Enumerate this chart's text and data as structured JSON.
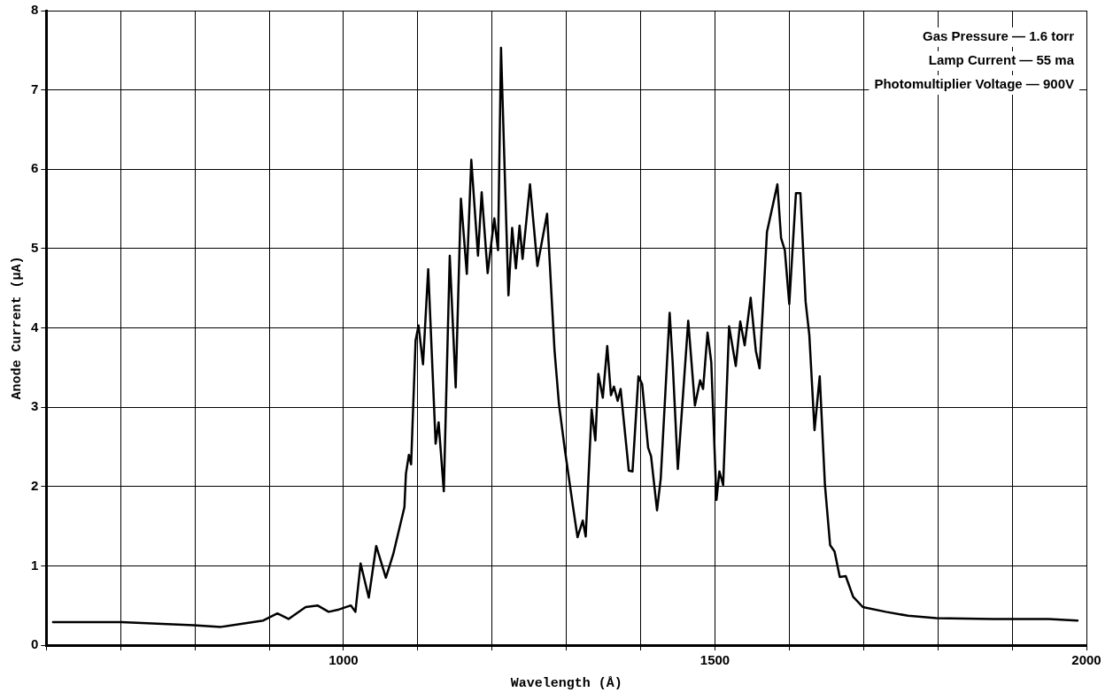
{
  "chart_data": {
    "type": "line",
    "xlabel": "Wavelength (Å)",
    "ylabel": "Anode Current (μA)",
    "x": [
      609,
      701,
      798,
      835,
      892,
      911,
      926,
      949,
      965,
      980,
      994,
      1010,
      1016,
      1023,
      1034,
      1044,
      1057,
      1067,
      1082,
      1084,
      1088,
      1091,
      1097,
      1101,
      1107,
      1114,
      1124,
      1128,
      1135,
      1143,
      1151,
      1158,
      1166,
      1172,
      1181,
      1186,
      1194,
      1203,
      1208,
      1212,
      1222,
      1227,
      1232,
      1237,
      1241,
      1251,
      1261,
      1274,
      1284,
      1290,
      1298,
      1309,
      1315,
      1322,
      1326,
      1334,
      1339,
      1343,
      1349,
      1355,
      1360,
      1364,
      1369,
      1373,
      1384,
      1389,
      1397,
      1402,
      1410,
      1414,
      1422,
      1427,
      1439,
      1443,
      1450,
      1464,
      1473,
      1480,
      1484,
      1490,
      1495,
      1502,
      1506,
      1511,
      1519,
      1528,
      1534,
      1540,
      1548,
      1555,
      1560,
      1570,
      1584,
      1589,
      1594,
      1600,
      1609,
      1615,
      1622,
      1627,
      1634,
      1641,
      1648,
      1655,
      1661,
      1668,
      1676,
      1686,
      1699,
      1730,
      1760,
      1798,
      1874,
      1949,
      1988
    ],
    "series": [
      {
        "color": "#000000",
        "values": [
          0.29,
          0.29,
          0.25,
          0.23,
          0.31,
          0.4,
          0.33,
          0.48,
          0.5,
          0.42,
          0.45,
          0.5,
          0.42,
          1.03,
          0.6,
          1.25,
          0.85,
          1.15,
          1.74,
          2.16,
          2.4,
          2.28,
          3.84,
          4.03,
          3.54,
          4.74,
          2.54,
          2.81,
          1.94,
          4.91,
          3.25,
          5.63,
          4.68,
          6.12,
          4.91,
          5.71,
          4.69,
          5.38,
          4.98,
          7.53,
          4.41,
          5.26,
          4.75,
          5.29,
          4.87,
          5.81,
          4.78,
          5.44,
          3.72,
          3.04,
          2.46,
          1.74,
          1.36,
          1.57,
          1.37,
          2.97,
          2.58,
          3.42,
          3.12,
          3.77,
          3.15,
          3.26,
          3.08,
          3.23,
          2.2,
          2.19,
          3.39,
          3.29,
          2.49,
          2.38,
          1.7,
          2.1,
          4.19,
          3.57,
          2.22,
          4.09,
          3.02,
          3.34,
          3.23,
          3.94,
          3.57,
          1.83,
          2.19,
          2.02,
          4.02,
          3.52,
          4.08,
          3.78,
          4.38,
          3.71,
          3.49,
          5.21,
          5.81,
          5.13,
          4.98,
          4.3,
          5.7,
          5.7,
          4.33,
          3.91,
          2.71,
          3.39,
          2.02,
          1.26,
          1.18,
          0.86,
          0.87,
          0.61,
          0.48,
          0.42,
          0.37,
          0.34,
          0.33,
          0.33,
          0.31
        ]
      }
    ],
    "xlim": [
      600,
      2000
    ],
    "ylim": [
      0,
      8
    ],
    "xticks": [
      {
        "value": 600,
        "label": null
      },
      {
        "value": 700,
        "label": null
      },
      {
        "value": 800,
        "label": null
      },
      {
        "value": 900,
        "label": null
      },
      1000,
      {
        "value": 1100,
        "label": null
      },
      {
        "value": 1200,
        "label": null
      },
      {
        "value": 1300,
        "label": null
      },
      {
        "value": 1400,
        "label": null
      },
      1500,
      {
        "value": 1600,
        "label": null
      },
      {
        "value": 1700,
        "label": null
      },
      {
        "value": 1800,
        "label": null
      },
      {
        "value": 1900,
        "label": null
      },
      2000
    ],
    "yticks": [
      0,
      1,
      2,
      3,
      4,
      5,
      6,
      7,
      8
    ],
    "grid": true,
    "marker": "none",
    "line_style": "solid",
    "annotations": [
      "Gas Pressure — 1.6 torr",
      "Lamp Current — 55 ma",
      "Photomultiplier Voltage — 900V"
    ]
  }
}
